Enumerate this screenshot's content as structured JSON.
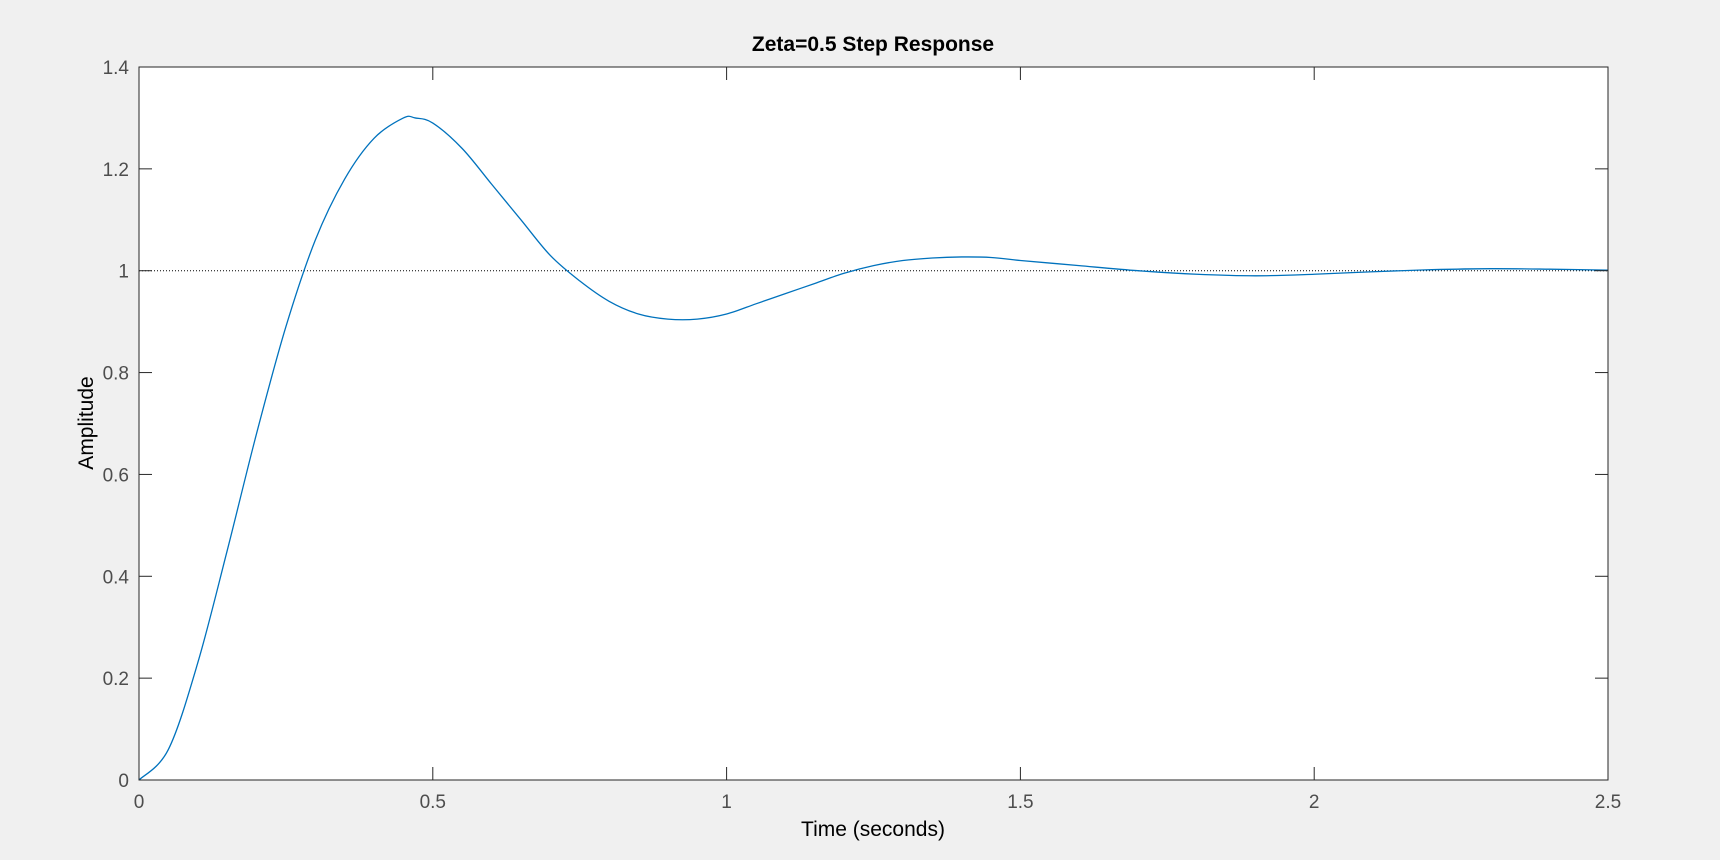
{
  "chart_data": {
    "type": "line",
    "title": "Zeta=0.5 Step Response",
    "xlabel": "Time (seconds)",
    "ylabel": "Amplitude",
    "xlim": [
      0,
      2.5
    ],
    "ylim": [
      0,
      1.4
    ],
    "xticks": [
      0,
      0.5,
      1,
      1.5,
      2,
      2.5
    ],
    "xtick_labels": [
      "0",
      "0.5",
      "1",
      "1.5",
      "2",
      "2.5"
    ],
    "yticks": [
      0,
      0.2,
      0.4,
      0.6,
      0.8,
      1,
      1.2,
      1.4
    ],
    "ytick_labels": [
      "0",
      "0.2",
      "0.4",
      "0.6",
      "0.8",
      "1",
      "1.2",
      "1.4"
    ],
    "grid": false,
    "reference_line": {
      "y": 1,
      "style": "dotted",
      "color": "#000000"
    },
    "series": [
      {
        "color": "#0072bd",
        "x": [
          0,
          0.05,
          0.1,
          0.15,
          0.2,
          0.25,
          0.3,
          0.35,
          0.4,
          0.45,
          0.47,
          0.5,
          0.55,
          0.6,
          0.65,
          0.7,
          0.75,
          0.8,
          0.85,
          0.9,
          0.95,
          1.0,
          1.05,
          1.1,
          1.15,
          1.2,
          1.25,
          1.3,
          1.35,
          1.4,
          1.45,
          1.5,
          1.55,
          1.6,
          1.7,
          1.8,
          1.9,
          2.0,
          2.1,
          2.2,
          2.3,
          2.4,
          2.5
        ],
        "y": [
          0,
          0.06,
          0.23,
          0.45,
          0.68,
          0.89,
          1.06,
          1.18,
          1.26,
          1.3,
          1.3,
          1.29,
          1.24,
          1.17,
          1.1,
          1.03,
          0.98,
          0.94,
          0.915,
          0.905,
          0.905,
          0.915,
          0.935,
          0.955,
          0.975,
          0.995,
          1.01,
          1.02,
          1.025,
          1.027,
          1.026,
          1.02,
          1.015,
          1.01,
          1.0,
          0.993,
          0.99,
          0.993,
          0.998,
          1.002,
          1.004,
          1.003,
          1.001
        ]
      }
    ]
  },
  "colors": {
    "figure_background": "#f0f0f0",
    "axes_background": "#ffffff",
    "axes_edge": "#262626",
    "line": "#0072bd"
  }
}
